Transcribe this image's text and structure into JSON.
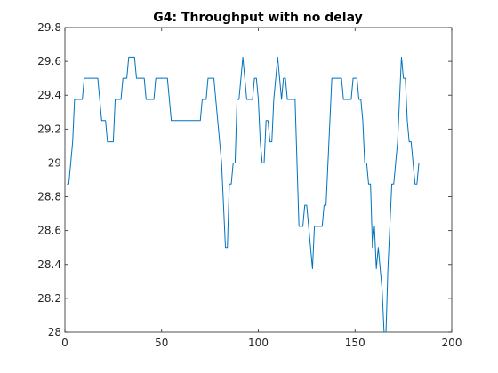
{
  "chart_data": {
    "type": "line",
    "title": "G4: Throughput with no delay",
    "xlabel": "",
    "ylabel": "",
    "xlim": [
      0,
      200
    ],
    "ylim": [
      28,
      29.8
    ],
    "xticks": [
      0,
      50,
      100,
      150,
      200
    ],
    "yticks": [
      28,
      28.2,
      28.4,
      28.6,
      28.8,
      29,
      29.2,
      29.4,
      29.6,
      29.8
    ],
    "xtick_labels": [
      "0",
      "50",
      "100",
      "150",
      "200"
    ],
    "ytick_labels": [
      "28",
      "28.2",
      "28.4",
      "28.6",
      "28.8",
      "29",
      "29.2",
      "29.4",
      "29.6",
      "29.8"
    ],
    "grid": false,
    "legend": "none",
    "colors": {
      "line": "#0072BD",
      "axis": "#262626",
      "background": "#ffffff"
    },
    "series": [
      {
        "x": [
          1,
          2,
          3,
          4,
          5,
          6,
          7,
          8,
          9,
          10,
          11,
          12,
          13,
          14,
          15,
          16,
          17,
          18,
          19,
          20,
          21,
          22,
          23,
          24,
          25,
          26,
          27,
          28,
          29,
          30,
          31,
          32,
          33,
          34,
          35,
          36,
          37,
          38,
          39,
          40,
          41,
          42,
          43,
          44,
          45,
          46,
          47,
          48,
          49,
          50,
          51,
          52,
          53,
          54,
          55,
          56,
          57,
          58,
          59,
          60,
          61,
          62,
          63,
          64,
          65,
          66,
          67,
          68,
          69,
          70,
          71,
          72,
          73,
          74,
          75,
          76,
          77,
          78,
          79,
          80,
          81,
          82,
          83,
          84,
          85,
          86,
          87,
          88,
          89,
          90,
          91,
          92,
          93,
          94,
          95,
          96,
          97,
          98,
          99,
          100,
          101,
          102,
          103,
          104,
          105,
          106,
          107,
          108,
          109,
          110,
          111,
          112,
          113,
          114,
          115,
          116,
          117,
          118,
          119,
          120,
          121,
          122,
          123,
          124,
          125,
          126,
          127,
          128,
          129,
          130,
          131,
          132,
          133,
          134,
          135,
          136,
          137,
          138,
          139,
          140,
          141,
          142,
          143,
          144,
          145,
          146,
          147,
          148,
          149,
          150,
          151,
          152,
          153,
          154,
          155,
          156,
          157,
          158,
          159,
          160,
          161,
          162,
          163,
          164,
          165,
          166,
          167,
          168,
          169,
          170,
          171,
          172,
          173,
          174,
          175,
          176,
          177,
          178,
          179,
          180,
          181,
          182,
          183,
          184,
          185,
          186,
          187,
          188,
          189,
          190
        ],
        "values": [
          28.875,
          28.875,
          29,
          29.125,
          29.375,
          29.375,
          29.375,
          29.375,
          29.375,
          29.5,
          29.5,
          29.5,
          29.5,
          29.5,
          29.5,
          29.5,
          29.5,
          29.375,
          29.25,
          29.25,
          29.25,
          29.125,
          29.125,
          29.125,
          29.125,
          29.375,
          29.375,
          29.375,
          29.375,
          29.5,
          29.5,
          29.5,
          29.625,
          29.625,
          29.625,
          29.625,
          29.5,
          29.5,
          29.5,
          29.5,
          29.5,
          29.375,
          29.375,
          29.375,
          29.375,
          29.375,
          29.5,
          29.5,
          29.5,
          29.5,
          29.5,
          29.5,
          29.5,
          29.375,
          29.25,
          29.25,
          29.25,
          29.25,
          29.25,
          29.25,
          29.25,
          29.25,
          29.25,
          29.25,
          29.25,
          29.25,
          29.25,
          29.25,
          29.25,
          29.25,
          29.375,
          29.375,
          29.375,
          29.5,
          29.5,
          29.5,
          29.5,
          29.375,
          29.25,
          29.125,
          29,
          28.75,
          28.5,
          28.5,
          28.875,
          28.875,
          29,
          29,
          29.375,
          29.375,
          29.5,
          29.625,
          29.5,
          29.375,
          29.375,
          29.375,
          29.375,
          29.5,
          29.5,
          29.375,
          29.125,
          29,
          29,
          29.25,
          29.25,
          29.125,
          29.125,
          29.375,
          29.5,
          29.625,
          29.5,
          29.375,
          29.5,
          29.5,
          29.375,
          29.375,
          29.375,
          29.375,
          29.375,
          29,
          28.625,
          28.625,
          28.625,
          28.75,
          28.75,
          28.625,
          28.5,
          28.375,
          28.625,
          28.625,
          28.625,
          28.625,
          28.625,
          28.75,
          28.75,
          29,
          29.25,
          29.5,
          29.5,
          29.5,
          29.5,
          29.5,
          29.5,
          29.375,
          29.375,
          29.375,
          29.375,
          29.375,
          29.5,
          29.5,
          29.5,
          29.375,
          29.375,
          29.25,
          29,
          29,
          28.875,
          28.875,
          28.5,
          28.625,
          28.375,
          28.5,
          28.375,
          28.25,
          28,
          28,
          28.375,
          28.625,
          28.875,
          28.875,
          29,
          29.125,
          29.375,
          29.625,
          29.5,
          29.5,
          29.25,
          29.125,
          29.125,
          29,
          28.875,
          28.875,
          29,
          29,
          29,
          29,
          29,
          29,
          29,
          29
        ]
      }
    ]
  }
}
